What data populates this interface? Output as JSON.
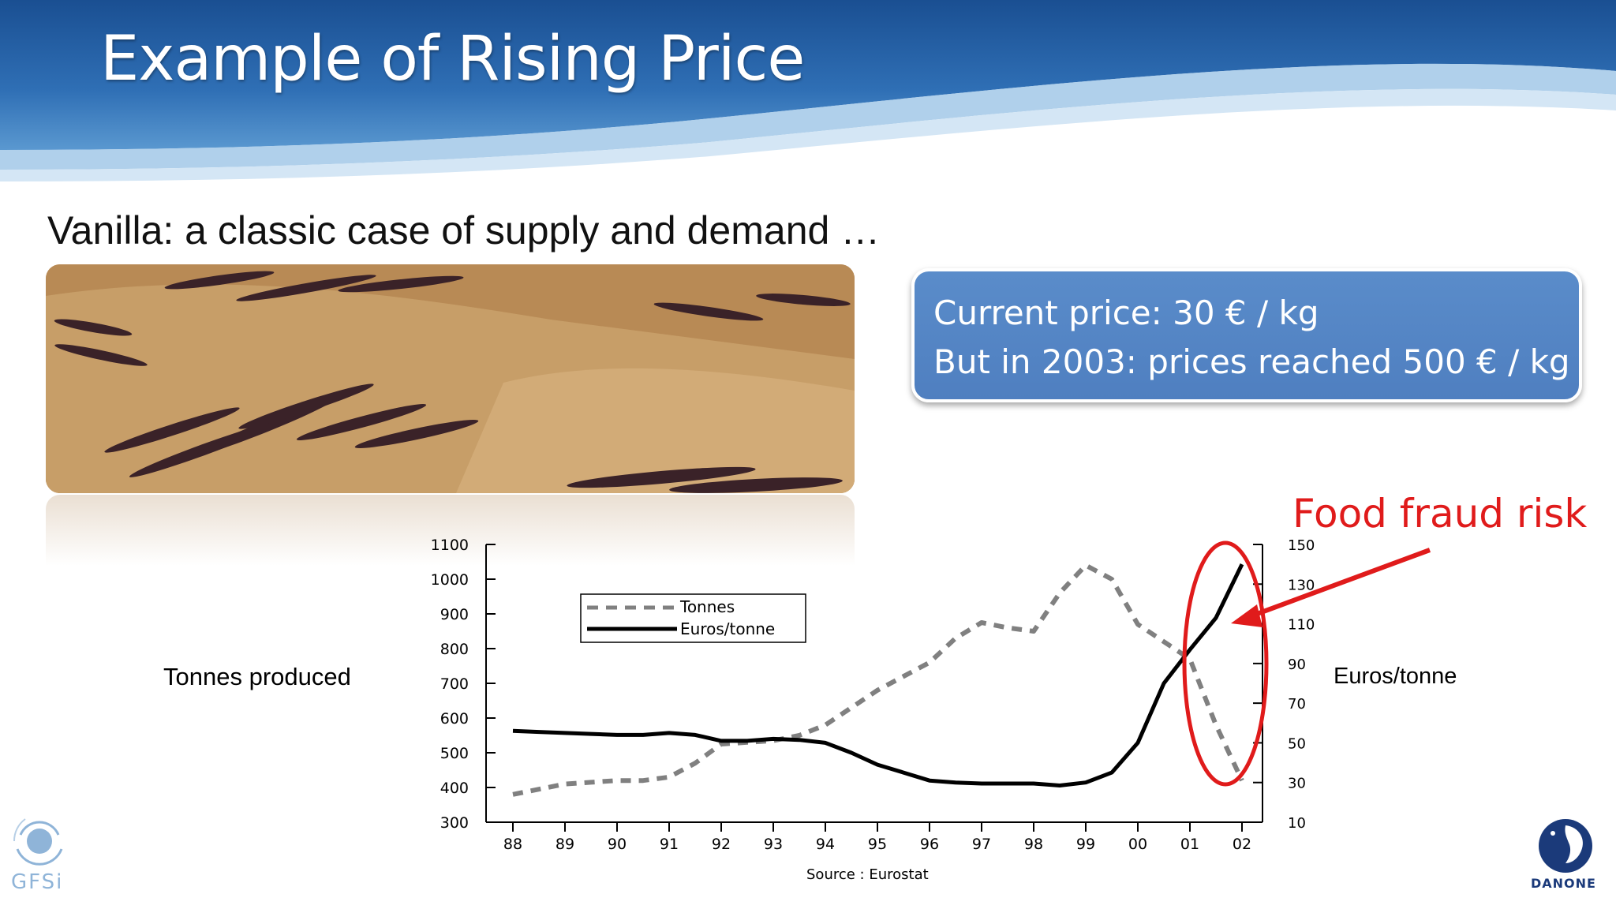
{
  "slide": {
    "title": "Example of Rising Price",
    "subtitle": "Vanilla: a classic case of supply and demand …"
  },
  "price_box": {
    "line1": "Current price: 30 € / kg",
    "line2": "But in 2003: prices reached 500 € / kg"
  },
  "annotation": {
    "label": "Food fraud risk",
    "color": "#e01b1b"
  },
  "logos": {
    "left": "GFSi",
    "right": "DANONE"
  },
  "colors": {
    "banner": "#1f5aa0",
    "box": "#4f7fc0",
    "tonnes_series": "#808080",
    "euros_series": "#000000"
  },
  "chart_data": {
    "type": "line",
    "source": "Source : Eurostat",
    "ylabel_left": "Tonnes produced",
    "ylabel_right": "Euros/tonne",
    "x_ticks": [
      "88",
      "89",
      "90",
      "91",
      "92",
      "93",
      "94",
      "95",
      "96",
      "97",
      "98",
      "99",
      "00",
      "01",
      "02"
    ],
    "ylim_left": [
      300,
      1100
    ],
    "ylim_right": [
      10,
      150
    ],
    "yticks_left": [
      300,
      400,
      500,
      600,
      700,
      800,
      900,
      1000,
      1100
    ],
    "yticks_right": [
      10,
      30,
      50,
      70,
      90,
      110,
      130,
      150
    ],
    "legend_position": "top-left",
    "series": [
      {
        "name": "Tonnes",
        "axis": "left",
        "style": "dashed",
        "x": [
          0,
          0.5,
          1,
          1.5,
          2,
          2.5,
          3,
          3.5,
          4,
          4.5,
          5,
          5.5,
          6,
          6.5,
          7,
          7.5,
          8,
          8.5,
          9,
          9.5,
          10,
          10.5,
          11,
          11.5,
          12,
          12.5,
          13,
          13.5,
          14
        ],
        "values": [
          380,
          395,
          410,
          415,
          420,
          420,
          430,
          470,
          525,
          530,
          535,
          550,
          580,
          630,
          680,
          720,
          760,
          830,
          875,
          860,
          850,
          960,
          1040,
          1000,
          870,
          820,
          770,
          580,
          420
        ]
      },
      {
        "name": "Euros/tonne",
        "axis": "right",
        "style": "solid",
        "x": [
          0,
          0.5,
          1,
          1.5,
          2,
          2.5,
          3,
          3.5,
          4,
          4.5,
          5,
          5.5,
          6,
          6.5,
          7,
          7.5,
          8,
          8.5,
          9,
          9.5,
          10,
          10.5,
          11,
          11.5,
          12,
          12.5,
          13,
          13.5,
          14
        ],
        "values": [
          56,
          55.5,
          55,
          54.5,
          54,
          54,
          55,
          54,
          51,
          51,
          52,
          51.5,
          50,
          45,
          39,
          35,
          31,
          30,
          29.5,
          29.5,
          29.5,
          28.5,
          30,
          35,
          50,
          80,
          97,
          113,
          140
        ]
      }
    ]
  }
}
